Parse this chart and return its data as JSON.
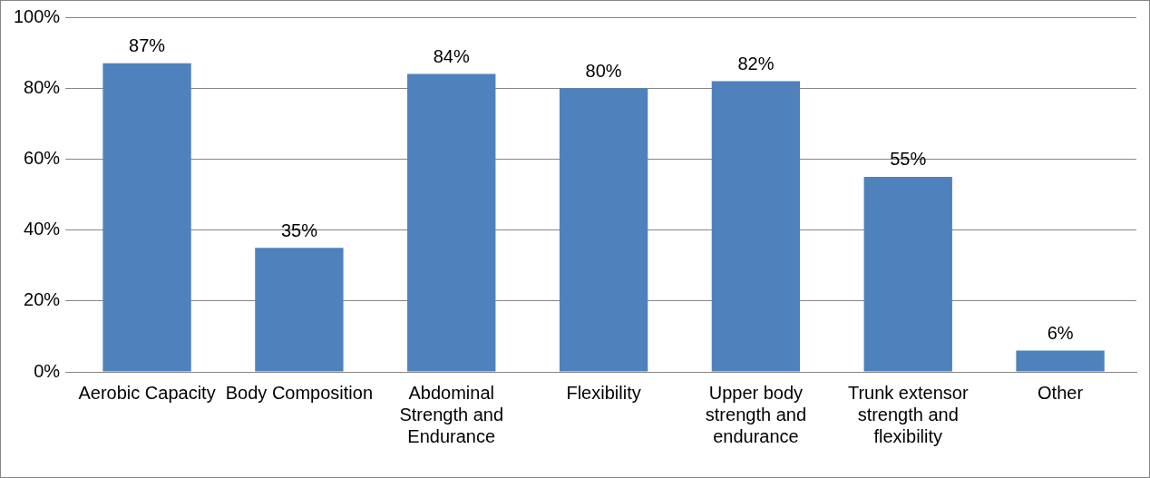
{
  "chart_data": {
    "type": "bar",
    "categories": [
      "Aerobic Capacity",
      "Body Composition",
      "Abdominal Strength and Endurance",
      "Flexibility",
      "Upper body strength and endurance",
      "Trunk extensor strength and flexibility",
      "Other"
    ],
    "values": [
      87,
      35,
      84,
      80,
      82,
      55,
      6
    ],
    "value_labels": [
      "87%",
      "35%",
      "84%",
      "80%",
      "82%",
      "55%",
      "6%"
    ],
    "color": "#4f81bd",
    "ylim": [
      0,
      100
    ],
    "yticks": [
      {
        "value": 0,
        "label": "0%"
      },
      {
        "value": 20,
        "label": "20%"
      },
      {
        "value": 40,
        "label": "40%"
      },
      {
        "value": 60,
        "label": "60%"
      },
      {
        "value": 80,
        "label": "80%"
      },
      {
        "value": 100,
        "label": "100%"
      }
    ],
    "grid": "y",
    "legend": false
  }
}
